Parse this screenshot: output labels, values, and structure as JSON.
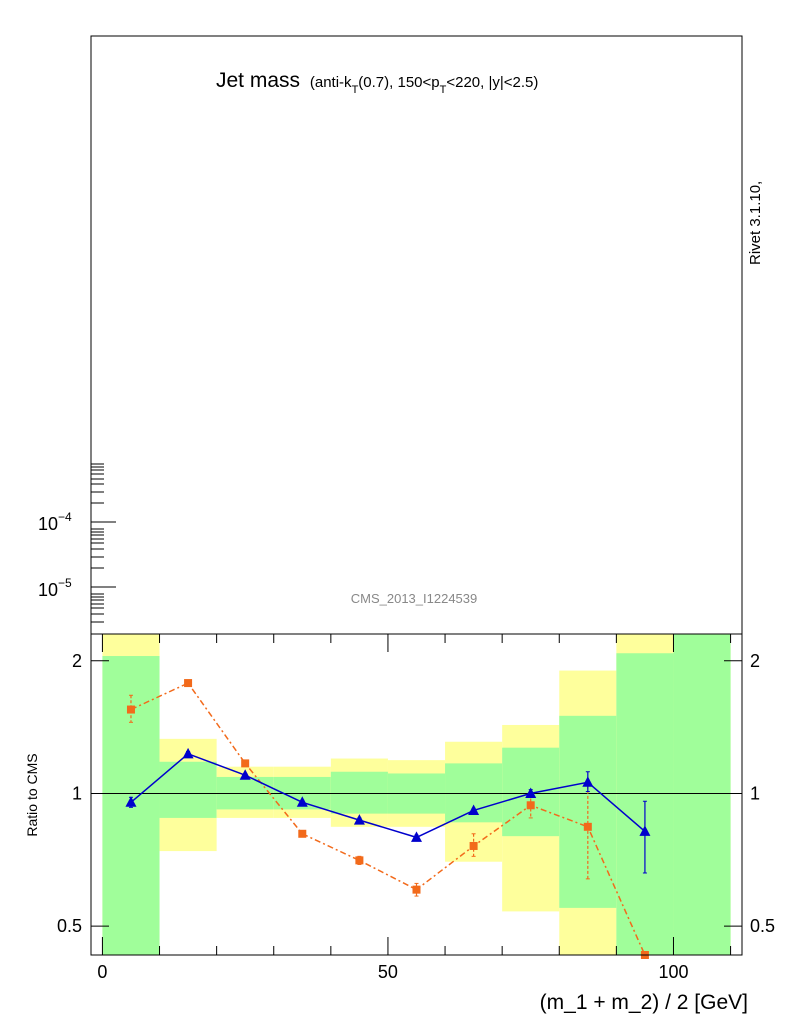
{
  "chart_data": [
    {
      "type": "line",
      "title": "Jet mass",
      "subtitle_parts": [
        "(anti-k",
        "T",
        "(0.7), 150<p",
        "T",
        "<220, |y|<2.5)"
      ],
      "yscale": "log",
      "ytick_labels": [
        {
          "base": "10",
          "exp": "−4",
          "value": 0.0001
        },
        {
          "base": "10",
          "exp": "−5",
          "value": 1e-05
        }
      ],
      "watermark": "CMS_2013_I1224539",
      "side_label": "Rivet 3.1.10,"
    },
    {
      "type": "line",
      "ylabel": "Ratio to CMS",
      "xlabel": "(m_1 + m_2) / 2 [GeV]",
      "yscale": "log",
      "xlim": [
        -2,
        112
      ],
      "ylim": [
        0.43,
        2.3
      ],
      "x_ticks": [
        0,
        50,
        100
      ],
      "x_tick_labels": [
        "0",
        "50",
        "100"
      ],
      "y_ticks": [
        0.5,
        1,
        2
      ],
      "y_tick_labels": [
        "0.5",
        "1",
        "2"
      ],
      "reference_line": 1,
      "bands": {
        "bins": [
          0,
          10,
          20,
          30,
          40,
          50,
          60,
          70,
          80,
          90,
          100,
          110
        ],
        "green": [
          [
            0.43,
            2.05
          ],
          [
            0.88,
            1.18
          ],
          [
            0.92,
            1.09
          ],
          [
            0.92,
            1.09
          ],
          [
            0.9,
            1.12
          ],
          [
            0.9,
            1.11
          ],
          [
            0.86,
            1.17
          ],
          [
            0.8,
            1.27
          ],
          [
            0.55,
            1.5
          ],
          [
            0.43,
            2.08
          ],
          [
            0.43,
            2.3
          ]
        ],
        "yellow": [
          [
            0.43,
            2.3
          ],
          [
            0.74,
            1.33
          ],
          [
            0.88,
            1.15
          ],
          [
            0.88,
            1.15
          ],
          [
            0.84,
            1.2
          ],
          [
            0.84,
            1.19
          ],
          [
            0.7,
            1.31
          ],
          [
            0.54,
            1.43
          ],
          [
            0.43,
            1.9
          ],
          [
            0.43,
            2.3
          ],
          [
            0.43,
            2.3
          ]
        ]
      },
      "series": [
        {
          "color": "#0000cc",
          "marker": "triangle",
          "line": "solid",
          "x": [
            5,
            15,
            25,
            35,
            45,
            55,
            65,
            75,
            85,
            95
          ],
          "y": [
            0.955,
            1.23,
            1.1,
            0.955,
            0.87,
            0.795,
            0.915,
            1.0,
            1.06,
            0.82
          ],
          "err_lo": [
            0.025,
            0.015,
            0.01,
            0.01,
            0.01,
            0.01,
            0.01,
            0.02,
            0.05,
            0.16
          ],
          "err_hi": [
            0.025,
            0.015,
            0.01,
            0.01,
            0.01,
            0.01,
            0.01,
            0.02,
            0.06,
            0.14
          ]
        },
        {
          "color": "#f26a1b",
          "marker": "square",
          "line": "dashdot",
          "x": [
            5,
            15,
            25,
            35,
            45,
            55,
            65,
            75,
            85,
            95
          ],
          "y": [
            1.55,
            1.78,
            1.17,
            0.81,
            0.705,
            0.605,
            0.76,
            0.94,
            0.84,
            0.415
          ],
          "err_lo": [
            0.1,
            0.02,
            0.01,
            0.01,
            0.015,
            0.02,
            0.04,
            0.06,
            0.2,
            0.02
          ],
          "err_hi": [
            0.12,
            0.02,
            0.01,
            0.01,
            0.015,
            0.02,
            0.05,
            0.06,
            0.2,
            0.02
          ]
        }
      ],
      "band_colors": {
        "green": "#a0fe9a",
        "yellow": "#feff9c"
      }
    }
  ]
}
